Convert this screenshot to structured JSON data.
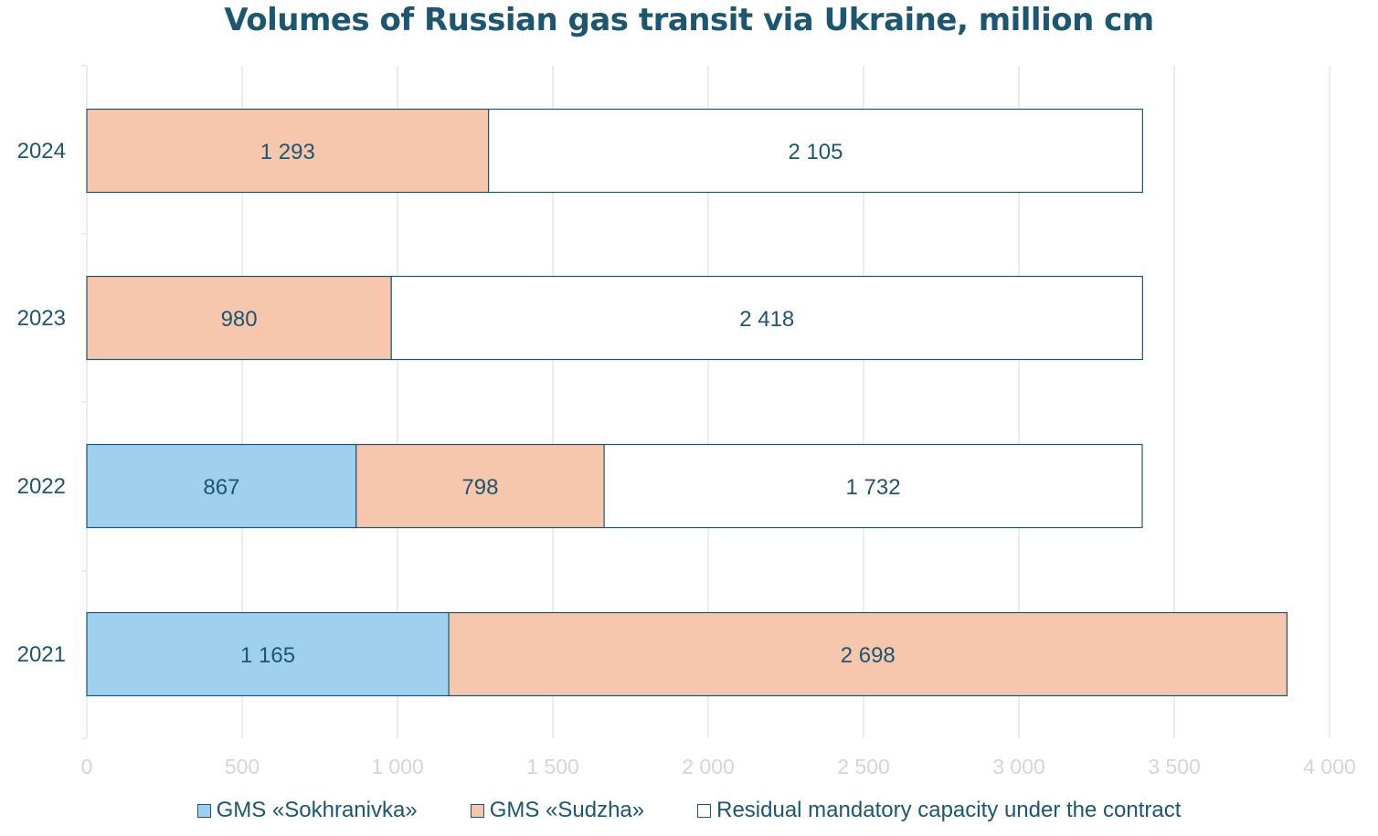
{
  "chart_data": {
    "type": "bar",
    "orientation": "horizontal",
    "stacked": true,
    "title": "Volumes of Russian gas transit via Ukraine, million cm",
    "categories": [
      "2024",
      "2023",
      "2022",
      "2021"
    ],
    "series": [
      {
        "name": "GMS «Sokhranivka»",
        "color": "#9fd0ee",
        "values": [
          0,
          0,
          867,
          1165
        ],
        "labels": [
          "",
          "",
          "867",
          "1 165"
        ]
      },
      {
        "name": "GMS «Sudzha»",
        "color": "#f6c6ad",
        "values": [
          1293,
          980,
          798,
          2698
        ],
        "labels": [
          "1 293",
          "980",
          "798",
          "2 698"
        ]
      },
      {
        "name": "Residual mandatory capacity under the contract",
        "color": "#ffffff",
        "values": [
          2105,
          2418,
          1732,
          0
        ],
        "labels": [
          "2 105",
          "2 418",
          "1 732",
          ""
        ]
      }
    ],
    "xlim": [
      0,
      4000
    ],
    "xticks": [
      0,
      500,
      1000,
      1500,
      2000,
      2500,
      3000,
      3500,
      4000
    ],
    "xtick_labels": [
      "0",
      "500",
      "1 000",
      "1 500",
      "2 000",
      "2 500",
      "3 000",
      "3 500",
      "4 000"
    ],
    "xlabel": "",
    "ylabel": "",
    "grid": true,
    "legend_position": "bottom",
    "colors": {
      "text": "#1d5670",
      "bar_border": "#1d5670",
      "grid": "#e6e6e6",
      "tick_text": "#d0d6da"
    }
  }
}
